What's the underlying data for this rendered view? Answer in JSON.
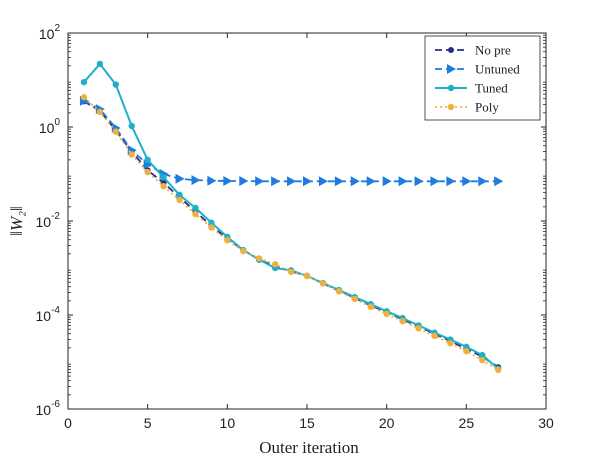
{
  "chart_data": {
    "type": "line",
    "title": "",
    "xlabel": "Outer iteration",
    "ylabel": "‖W₂‖",
    "yscale": "log",
    "xlim": [
      0,
      30
    ],
    "ylim": [
      1e-06,
      100
    ],
    "xticks": [
      "0",
      "5",
      "10",
      "15",
      "20",
      "25",
      "30"
    ],
    "yticks": [
      {
        "base": "10",
        "exp": "-6"
      },
      {
        "base": "10",
        "exp": "-4"
      },
      {
        "base": "10",
        "exp": "-2"
      },
      {
        "base": "10",
        "exp": "0"
      },
      {
        "base": "10",
        "exp": "2"
      }
    ],
    "grid": false,
    "legend_position": "top-right",
    "series": [
      {
        "name": "No pre",
        "color": "#2a2a8c",
        "line": "dashed",
        "marker": "circle",
        "x": [
          1,
          2,
          3,
          4,
          5,
          6,
          7,
          8,
          9,
          10,
          11,
          12,
          13,
          14,
          15,
          16,
          17,
          18,
          19,
          20,
          21,
          22,
          23,
          24,
          25,
          26,
          27
        ],
        "y": [
          3.5,
          2.2,
          0.85,
          0.3,
          0.12,
          0.065,
          0.032,
          0.016,
          0.0078,
          0.0042,
          0.0024,
          0.0015,
          0.0011,
          0.00085,
          0.00068,
          0.00047,
          0.00033,
          0.00023,
          0.00016,
          0.000115,
          8.1e-05,
          5.7e-05,
          4e-05,
          2.8e-05,
          1.9e-05,
          1.3e-05,
          7.8e-06
        ]
      },
      {
        "name": "Untuned",
        "color": "#1e7be0",
        "line": "dashed",
        "marker": "triangle-right",
        "x": [
          1,
          2,
          3,
          4,
          5,
          6,
          7,
          8,
          9,
          10,
          11,
          12,
          13,
          14,
          15,
          16,
          17,
          18,
          19,
          20,
          21,
          22,
          23,
          24,
          25,
          26,
          27
        ],
        "y": [
          3.6,
          2.4,
          0.95,
          0.32,
          0.16,
          0.1,
          0.079,
          0.074,
          0.072,
          0.071,
          0.071,
          0.07,
          0.07,
          0.07,
          0.07,
          0.07,
          0.07,
          0.07,
          0.07,
          0.07,
          0.07,
          0.07,
          0.07,
          0.07,
          0.07,
          0.07,
          0.07
        ]
      },
      {
        "name": "Tuned",
        "color": "#1fb0c8",
        "line": "solid",
        "marker": "dot",
        "x": [
          1,
          2,
          3,
          4,
          5,
          6,
          7,
          8,
          9,
          10,
          11,
          12,
          13,
          14,
          15,
          16,
          17,
          18,
          19,
          20,
          21,
          22,
          23,
          24,
          25,
          26,
          27
        ],
        "y": [
          9.0,
          22.0,
          8.0,
          1.05,
          0.2,
          0.085,
          0.036,
          0.019,
          0.0092,
          0.0046,
          0.0024,
          0.0015,
          0.001,
          0.00089,
          0.00068,
          0.00048,
          0.00034,
          0.00024,
          0.00017,
          0.00012,
          8.6e-05,
          6e-05,
          4.2e-05,
          3e-05,
          2.1e-05,
          1.4e-05,
          7.2e-06
        ]
      },
      {
        "name": "Poly",
        "color": "#f0b040",
        "line": "dotted",
        "marker": "dot",
        "x": [
          1,
          2,
          3,
          4,
          5,
          6,
          7,
          8,
          9,
          10,
          11,
          12,
          13,
          14,
          15,
          16,
          17,
          18,
          19,
          20,
          21,
          22,
          23,
          24,
          25,
          26,
          27
        ],
        "y": [
          4.3,
          2.1,
          0.8,
          0.26,
          0.11,
          0.055,
          0.028,
          0.014,
          0.0073,
          0.0039,
          0.0023,
          0.0016,
          0.0012,
          0.00083,
          0.00068,
          0.00047,
          0.00032,
          0.00022,
          0.00015,
          0.000105,
          7.4e-05,
          5.2e-05,
          3.6e-05,
          2.5e-05,
          1.7e-05,
          1.1e-05,
          6.8e-06
        ]
      }
    ]
  }
}
